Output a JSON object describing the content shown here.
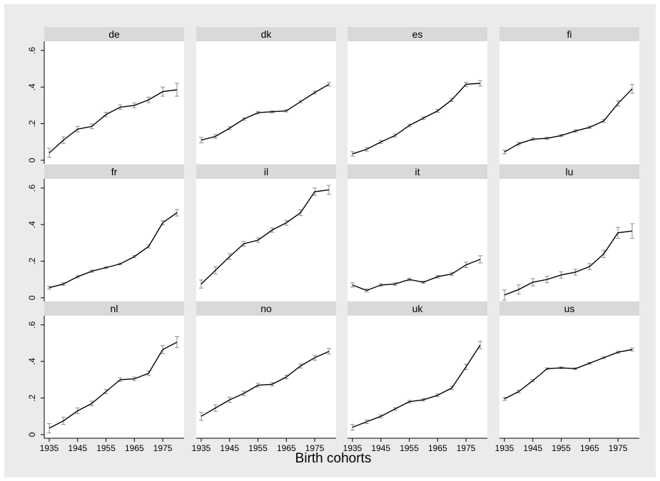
{
  "chart_data": {
    "type": "line",
    "layout": "small-multiples 3x4",
    "xlabel": "Birth cohorts",
    "ylabel": "",
    "title": "",
    "x": [
      1935,
      1940,
      1945,
      1950,
      1955,
      1960,
      1965,
      1970,
      1975,
      1980
    ],
    "x_ticks": [
      1935,
      1945,
      1955,
      1965,
      1975
    ],
    "x_tick_labels": [
      "1935",
      "1945",
      "1955",
      "1965",
      "1975"
    ],
    "xlim": [
      1935,
      1980
    ],
    "y_ticks": [
      0,
      0.2,
      0.4,
      0.6
    ],
    "y_tick_labels": [
      "0",
      ".2",
      ".4",
      ".6"
    ],
    "ylim": [
      -0.02,
      0.65
    ],
    "grid": false,
    "error_bars": true,
    "colors": {
      "background": "#ebebeb",
      "plot_area": "#ffffff",
      "strip": "#d9d9d9",
      "line": "#000000",
      "error_bar": "#8c8c8c",
      "axis": "#000000"
    },
    "panels": [
      {
        "label": "de",
        "values": [
          0.04,
          0.11,
          0.17,
          0.185,
          0.25,
          0.29,
          0.3,
          0.33,
          0.375,
          0.385
        ],
        "errors": [
          0.025,
          0.018,
          0.015,
          0.013,
          0.012,
          0.013,
          0.013,
          0.015,
          0.025,
          0.035
        ]
      },
      {
        "label": "dk",
        "values": [
          0.11,
          0.13,
          0.175,
          0.225,
          0.26,
          0.265,
          0.27,
          0.32,
          0.37,
          0.415
        ],
        "errors": [
          0.015,
          0.01,
          0.008,
          0.007,
          0.007,
          0.006,
          0.006,
          0.006,
          0.008,
          0.01
        ]
      },
      {
        "label": "es",
        "values": [
          0.035,
          0.06,
          0.1,
          0.135,
          0.19,
          0.23,
          0.27,
          0.33,
          0.415,
          0.42
        ],
        "errors": [
          0.012,
          0.01,
          0.008,
          0.008,
          0.007,
          0.007,
          0.008,
          0.009,
          0.012,
          0.015
        ]
      },
      {
        "label": "fi",
        "values": [
          0.045,
          0.09,
          0.115,
          0.12,
          0.135,
          0.16,
          0.18,
          0.215,
          0.31,
          0.39
        ],
        "errors": [
          0.01,
          0.008,
          0.007,
          0.006,
          0.006,
          0.006,
          0.006,
          0.008,
          0.015,
          0.025
        ]
      },
      {
        "label": "fr",
        "values": [
          0.055,
          0.075,
          0.115,
          0.145,
          0.165,
          0.185,
          0.225,
          0.28,
          0.41,
          0.465
        ],
        "errors": [
          0.008,
          0.007,
          0.006,
          0.006,
          0.005,
          0.005,
          0.006,
          0.008,
          0.012,
          0.018
        ]
      },
      {
        "label": "il",
        "values": [
          0.075,
          0.15,
          0.225,
          0.295,
          0.315,
          0.37,
          0.41,
          0.465,
          0.58,
          0.59
        ],
        "errors": [
          0.022,
          0.02,
          0.016,
          0.013,
          0.012,
          0.012,
          0.013,
          0.016,
          0.02,
          0.025
        ]
      },
      {
        "label": "it",
        "values": [
          0.07,
          0.04,
          0.07,
          0.075,
          0.1,
          0.085,
          0.115,
          0.13,
          0.18,
          0.21
        ],
        "errors": [
          0.012,
          0.008,
          0.007,
          0.007,
          0.007,
          0.006,
          0.007,
          0.009,
          0.015,
          0.02
        ]
      },
      {
        "label": "lu",
        "values": [
          0.015,
          0.045,
          0.085,
          0.1,
          0.125,
          0.14,
          0.17,
          0.24,
          0.355,
          0.365
        ],
        "errors": [
          0.028,
          0.025,
          0.02,
          0.018,
          0.017,
          0.016,
          0.017,
          0.02,
          0.03,
          0.04
        ]
      },
      {
        "label": "nl",
        "values": [
          0.035,
          0.075,
          0.13,
          0.17,
          0.235,
          0.3,
          0.305,
          0.335,
          0.465,
          0.505
        ],
        "errors": [
          0.025,
          0.02,
          0.016,
          0.013,
          0.011,
          0.01,
          0.01,
          0.012,
          0.022,
          0.03
        ]
      },
      {
        "label": "no",
        "values": [
          0.1,
          0.145,
          0.19,
          0.225,
          0.27,
          0.275,
          0.315,
          0.375,
          0.42,
          0.455
        ],
        "errors": [
          0.022,
          0.018,
          0.014,
          0.012,
          0.01,
          0.009,
          0.01,
          0.011,
          0.013,
          0.015
        ]
      },
      {
        "label": "uk",
        "values": [
          0.04,
          0.07,
          0.1,
          0.14,
          0.18,
          0.19,
          0.215,
          0.255,
          0.37,
          0.49
        ],
        "errors": [
          0.015,
          0.01,
          0.008,
          0.007,
          0.007,
          0.007,
          0.008,
          0.01,
          0.015,
          0.02
        ]
      },
      {
        "label": "us",
        "values": [
          0.195,
          0.235,
          0.295,
          0.36,
          0.365,
          0.36,
          0.39,
          0.42,
          0.45,
          0.465
        ],
        "errors": [
          0.008,
          0.007,
          0.006,
          0.005,
          0.005,
          0.005,
          0.005,
          0.005,
          0.006,
          0.008
        ]
      }
    ]
  }
}
